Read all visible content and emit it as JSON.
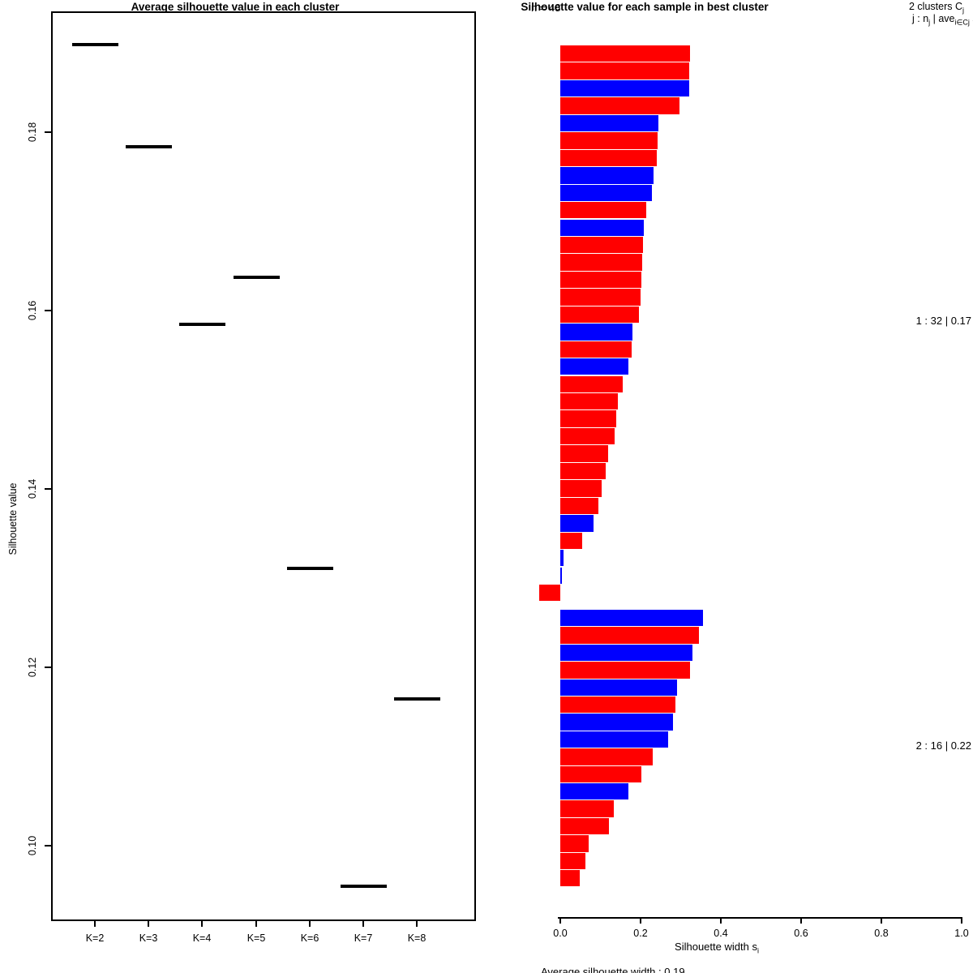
{
  "left_chart": {
    "title": "Average silhouette value in each cluster",
    "ylabel": "Silhouette value",
    "yticks": [
      {
        "label": "0.18",
        "value": 0.18
      },
      {
        "label": "0.16",
        "value": 0.16
      },
      {
        "label": "0.14",
        "value": 0.14
      },
      {
        "label": "0.12",
        "value": 0.12
      },
      {
        "label": "0.10",
        "value": 0.1
      }
    ],
    "xticks": [
      "K=2",
      "K=3",
      "K=4",
      "K=5",
      "K=6",
      "K=7",
      "K=8"
    ]
  },
  "right_chart": {
    "n_label": "n = 48",
    "title": "Silhouette value for each sample in best cluster",
    "legend_line1": {
      "p1": "2 clusters C",
      "s1": "j"
    },
    "legend_line2": {
      "p1": "j :  n",
      "s1": "j",
      "p2": " | ave",
      "s2": "i∈Cj",
      "p3": "  s",
      "s3": "i"
    },
    "xlabel": {
      "p1": "Silhouette width s",
      "s1": "i"
    },
    "xticks": [
      "0.0",
      "0.2",
      "0.4",
      "0.6",
      "0.8",
      "1.0"
    ],
    "cluster_labels": [
      "1 :  32 | 0.17",
      "2 :  16 | 0.22"
    ],
    "footer": "Average silhouette width :  0.19"
  },
  "chart_data": [
    {
      "type": "scatter",
      "marker": "horizontal-segment",
      "title": "Average silhouette value in each cluster",
      "xlabel": "",
      "ylabel": "Silhouette value",
      "categories": [
        "K=2",
        "K=3",
        "K=4",
        "K=5",
        "K=6",
        "K=7",
        "K=8"
      ],
      "values": [
        0.1898,
        0.1784,
        0.1585,
        0.1637,
        0.1311,
        0.0955,
        0.1165
      ],
      "yticks": [
        0.1,
        0.12,
        0.14,
        0.16,
        0.18
      ],
      "ylim": [
        0.092,
        0.194
      ],
      "grid": false
    },
    {
      "type": "bar",
      "orientation": "horizontal",
      "title": "Silhouette value for each sample in best cluster",
      "xlabel": "Silhouette width si",
      "n_samples": 48,
      "n_clusters": 2,
      "xticks": [
        0.0,
        0.2,
        0.4,
        0.6,
        0.8,
        1.0
      ],
      "xlim": [
        -0.06,
        1.0
      ],
      "bar_colors": {
        "red": "#FF0000",
        "blue": "#0000FF"
      },
      "header_lines": [
        "2 clusters Cj",
        "j :  nj | avei∈Cj si"
      ],
      "average_silhouette_width": 0.19,
      "clusters": [
        {
          "id": 1,
          "n": 32,
          "avg_width": 0.17,
          "label": "1 :  32 | 0.17",
          "values": [
            0.323,
            0.322,
            0.321,
            0.297,
            0.244,
            0.242,
            0.24,
            0.232,
            0.228,
            0.214,
            0.208,
            0.207,
            0.204,
            0.202,
            0.2,
            0.196,
            0.18,
            0.178,
            0.17,
            0.156,
            0.143,
            0.139,
            0.135,
            0.119,
            0.113,
            0.103,
            0.095,
            0.083,
            0.055,
            0.008,
            0.004,
            -0.053
          ],
          "colors": [
            "red",
            "red",
            "blue",
            "red",
            "blue",
            "red",
            "red",
            "blue",
            "blue",
            "red",
            "blue",
            "red",
            "red",
            "red",
            "red",
            "red",
            "blue",
            "red",
            "blue",
            "red",
            "red",
            "red",
            "red",
            "red",
            "red",
            "red",
            "red",
            "blue",
            "red",
            "blue",
            "blue",
            "red"
          ]
        },
        {
          "id": 2,
          "n": 16,
          "avg_width": 0.22,
          "label": "2 :  16 | 0.22",
          "values": [
            0.356,
            0.345,
            0.329,
            0.323,
            0.291,
            0.287,
            0.281,
            0.269,
            0.23,
            0.202,
            0.17,
            0.133,
            0.121,
            0.071,
            0.063,
            0.048
          ],
          "colors": [
            "blue",
            "red",
            "blue",
            "red",
            "blue",
            "red",
            "blue",
            "blue",
            "red",
            "red",
            "blue",
            "red",
            "red",
            "red",
            "red",
            "red"
          ]
        }
      ]
    }
  ]
}
